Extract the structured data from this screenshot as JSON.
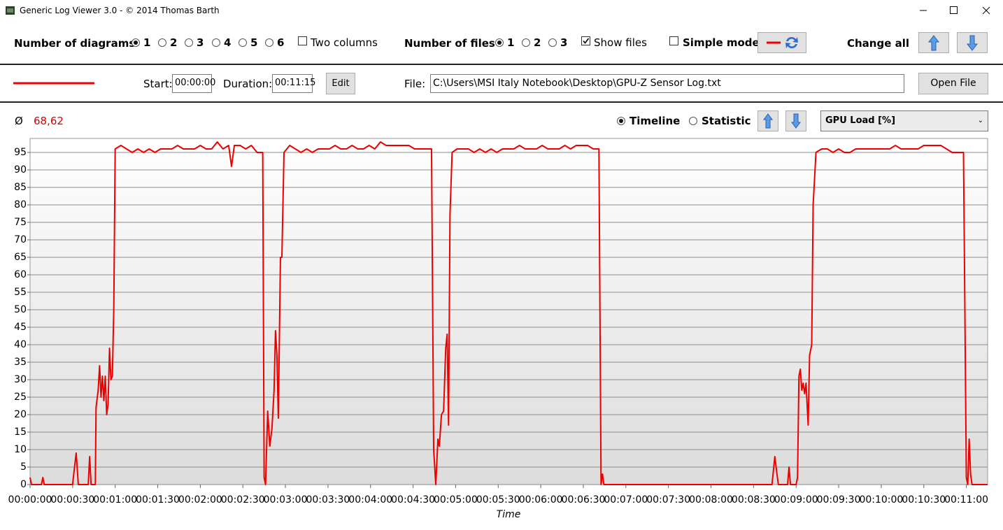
{
  "window": {
    "title": "Generic Log Viewer 3.0 - © 2014 Thomas Barth"
  },
  "toolbar": {
    "diagrams_label": "Number of diagrams",
    "diagram_options": [
      "1",
      "2",
      "3",
      "4",
      "5",
      "6"
    ],
    "two_columns": "Two columns",
    "files_label": "Number of files",
    "file_options": [
      "1",
      "2",
      "3"
    ],
    "show_files": "Show files",
    "simple_mode": "Simple mode",
    "change_all": "Change all"
  },
  "file_bar": {
    "start_label": "Start:",
    "start": "00:00:00",
    "duration_label": "Duration:",
    "duration": "00:11:15",
    "edit": "Edit",
    "file_label": "File:",
    "file_path": "C:\\Users\\MSI Italy Notebook\\Desktop\\GPU-Z Sensor Log.txt",
    "open_file": "Open File"
  },
  "diagram": {
    "avg_symbol": "Ø",
    "avg": "68,62",
    "timeline": "Timeline",
    "statistic": "Statistic",
    "channel": "GPU Load [%]"
  },
  "chart_data": {
    "type": "line",
    "x_label": "Time",
    "color": "#ee0000",
    "grid": true,
    "xlim": [
      0,
      675
    ],
    "ylim": [
      0,
      99
    ],
    "yticks": [
      0,
      5,
      10,
      15,
      20,
      25,
      30,
      35,
      40,
      45,
      50,
      55,
      60,
      65,
      70,
      75,
      80,
      85,
      90,
      95
    ],
    "xticks": [
      {
        "value": 0,
        "label": "00:00:00"
      },
      {
        "value": 30,
        "label": "00:00:30"
      },
      {
        "value": 60,
        "label": "00:01:00"
      },
      {
        "value": 90,
        "label": "00:01:30"
      },
      {
        "value": 120,
        "label": "00:02:00"
      },
      {
        "value": 150,
        "label": "00:02:30"
      },
      {
        "value": 180,
        "label": "00:03:00"
      },
      {
        "value": 210,
        "label": "00:03:30"
      },
      {
        "value": 240,
        "label": "00:04:00"
      },
      {
        "value": 270,
        "label": "00:04:30"
      },
      {
        "value": 300,
        "label": "00:05:00"
      },
      {
        "value": 330,
        "label": "00:05:30"
      },
      {
        "value": 360,
        "label": "00:06:00"
      },
      {
        "value": 390,
        "label": "00:06:30"
      },
      {
        "value": 420,
        "label": "00:07:00"
      },
      {
        "value": 450,
        "label": "00:07:30"
      },
      {
        "value": 480,
        "label": "00:08:00"
      },
      {
        "value": 510,
        "label": "00:08:30"
      },
      {
        "value": 540,
        "label": "00:09:00"
      },
      {
        "value": 570,
        "label": "00:09:30"
      },
      {
        "value": 600,
        "label": "00:10:00"
      },
      {
        "value": 630,
        "label": "00:10:30"
      },
      {
        "value": 660,
        "label": "00:11:00"
      }
    ],
    "x": [
      0,
      1,
      8,
      9,
      10,
      30,
      30.5,
      32.5,
      34,
      41,
      42,
      43,
      46,
      46.5,
      48,
      49,
      50,
      51,
      52,
      53,
      54,
      55,
      56,
      57,
      58,
      59,
      60,
      64,
      68,
      72,
      76,
      80,
      84,
      88,
      92,
      96,
      100,
      104,
      108,
      112,
      116,
      120,
      124,
      128,
      132,
      136,
      140,
      142,
      144,
      148,
      152,
      156,
      160,
      164,
      165,
      166,
      167.5,
      169,
      170.5,
      172,
      173,
      174,
      175,
      176.5,
      177.5,
      179,
      183,
      187,
      191,
      195,
      199,
      203,
      207,
      211,
      215,
      219,
      223,
      227,
      231,
      235,
      239,
      243,
      247,
      251,
      255,
      259,
      263,
      267,
      271,
      275,
      279,
      283,
      284.5,
      286,
      287.5,
      288.5,
      290,
      291.5,
      293,
      294,
      295,
      296,
      297.5,
      301,
      305,
      309,
      313,
      317,
      321,
      325,
      329,
      333,
      337,
      341,
      345,
      349,
      353,
      357,
      361,
      365,
      369,
      373,
      377,
      381,
      385,
      389,
      393,
      397,
      401,
      402.5,
      403.5,
      404.5,
      523,
      525,
      526.5,
      527.5,
      534,
      535,
      536,
      540,
      541,
      542,
      543,
      544,
      545,
      546,
      547,
      548.5,
      549.5,
      551,
      552,
      554,
      558,
      562,
      566,
      570,
      574,
      578,
      582,
      586,
      590,
      594,
      598,
      602,
      606,
      610,
      614,
      618,
      622,
      626,
      630,
      634,
      638,
      642,
      646,
      650,
      654,
      658,
      660,
      661,
      662,
      663,
      664,
      675
    ],
    "values": [
      2,
      0,
      0,
      2,
      0,
      0,
      2,
      9,
      0,
      0,
      8,
      0,
      0,
      22,
      27,
      34,
      25,
      31,
      24,
      31,
      20,
      23,
      39,
      30,
      31,
      50,
      96,
      97,
      96,
      95,
      96,
      95,
      96,
      95,
      96,
      96,
      96,
      97,
      96,
      96,
      96,
      97,
      96,
      96,
      98,
      96,
      97,
      91,
      97,
      97,
      96,
      97,
      95,
      95,
      2,
      0,
      21,
      11,
      16,
      27,
      44,
      37,
      19,
      65,
      65,
      95,
      97,
      96,
      95,
      96,
      95,
      96,
      96,
      96,
      97,
      96,
      96,
      97,
      96,
      96,
      97,
      96,
      98,
      97,
      97,
      97,
      97,
      97,
      96,
      96,
      96,
      96,
      10,
      0,
      13,
      11,
      20,
      21,
      39,
      43,
      17,
      77,
      95,
      96,
      96,
      96,
      95,
      96,
      95,
      96,
      95,
      96,
      96,
      96,
      97,
      96,
      96,
      96,
      97,
      96,
      96,
      96,
      97,
      96,
      97,
      97,
      97,
      96,
      96,
      0,
      3,
      0,
      0,
      8,
      3,
      0,
      0,
      5,
      0,
      0,
      2,
      31,
      33,
      27,
      29,
      26,
      29,
      17,
      37,
      40,
      80,
      95,
      96,
      96,
      95,
      96,
      95,
      95,
      96,
      96,
      96,
      96,
      96,
      96,
      96,
      97,
      96,
      96,
      96,
      96,
      97,
      97,
      97,
      97,
      96,
      95,
      95,
      95,
      2,
      0,
      13,
      3,
      0,
      0
    ]
  }
}
